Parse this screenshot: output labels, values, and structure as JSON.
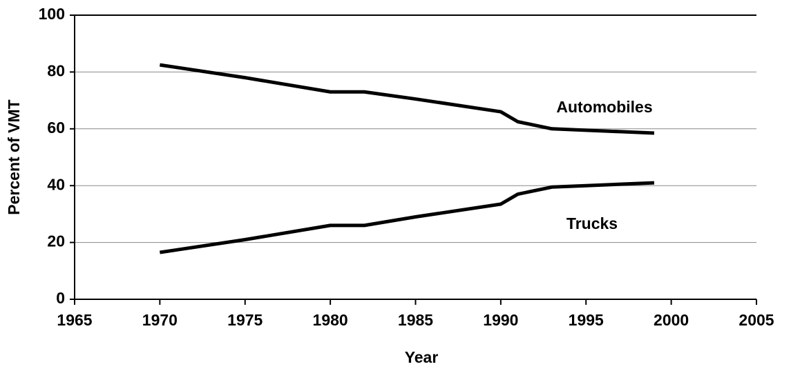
{
  "chart_data": {
    "type": "line",
    "x_label": "Year",
    "y_label": "Percent of VMT",
    "x": [
      1970,
      1975,
      1980,
      1982,
      1985,
      1990,
      1991,
      1993,
      1995,
      1997,
      1999
    ],
    "series": [
      {
        "name": "Automobiles",
        "color": "#000000",
        "values": [
          82.5,
          78,
          73,
          73,
          70.5,
          66,
          62.5,
          60,
          59.5,
          59,
          58.5
        ]
      },
      {
        "name": "Trucks",
        "color": "#000000",
        "values": [
          16.5,
          21,
          26,
          26,
          29,
          33.5,
          37,
          39.5,
          40,
          40.5,
          41
        ]
      }
    ],
    "xlim": [
      1965,
      2005
    ],
    "xticks": [
      1965,
      1970,
      1975,
      1980,
      1985,
      1990,
      1995,
      2000,
      2005
    ],
    "ylim": [
      0,
      100
    ],
    "yticks": [
      0,
      20,
      40,
      60,
      80,
      100
    ],
    "grid": true
  }
}
